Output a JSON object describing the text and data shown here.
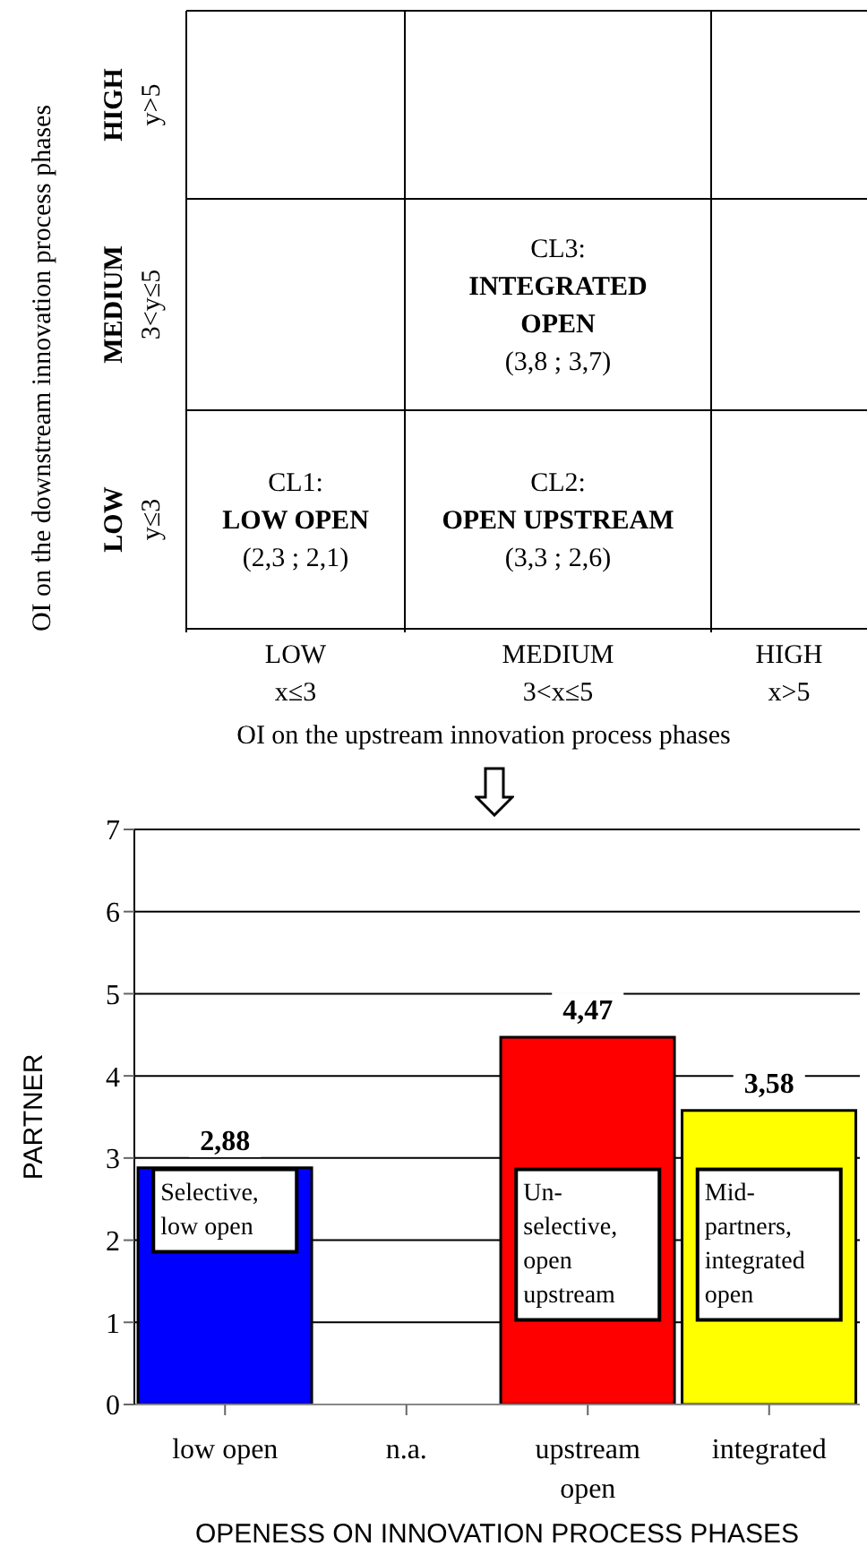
{
  "chart_data": [
    {
      "type": "other",
      "xlabel": "OI on the upstream innovation process phases",
      "ylabel": "OI on the downstream innovation process phases",
      "categories": [
        "LOW\nx≤3",
        "MEDIUM\n3<x≤5",
        "HIGH\nx>5"
      ],
      "y_categories": [
        "HIGH\ny>5",
        "MEDIUM\n3<y≤5",
        "LOW\ny≤3"
      ],
      "annotations": [
        {
          "text": "CL3:\nINTEGRATED\nOPEN\n(3,8 ; 3,7)",
          "x": "MEDIUM\n3<x≤5",
          "y": "MEDIUM\n3<y≤5"
        },
        {
          "text": "CL1:\nLOW OPEN\n(2,3 ; 2,1)",
          "x": "LOW\nx≤3",
          "y": "LOW\ny≤3"
        },
        {
          "text": "CL2:\nOPEN UPSTREAM\n(3,3 ; 2,6)",
          "x": "MEDIUM\n3<x≤5",
          "y": "LOW\ny≤3"
        }
      ]
    },
    {
      "type": "bar",
      "ylabel": "PARTNER",
      "xlabel": "OPENESS ON INNOVATION PROCESS PHASES",
      "categories": [
        "low open",
        "n.a.",
        "upstream open",
        "integrated"
      ],
      "values": [
        2.88,
        null,
        4.47,
        3.58
      ],
      "colors": [
        "#0000ff",
        "#808080",
        "#ff0000",
        "#ffff00"
      ],
      "value_labels": [
        "2,88",
        null,
        "4,47",
        "3,58"
      ],
      "ylim": [
        0,
        7
      ],
      "yticks": [
        0,
        1,
        2,
        3,
        4,
        5,
        6,
        7
      ],
      "grid": "y",
      "annotations": [
        "Selective,\nlow open",
        "Un-\nselective,\nopen\nupstream",
        "Mid-\npartners,\nintegrated\nopen"
      ]
    }
  ]
}
